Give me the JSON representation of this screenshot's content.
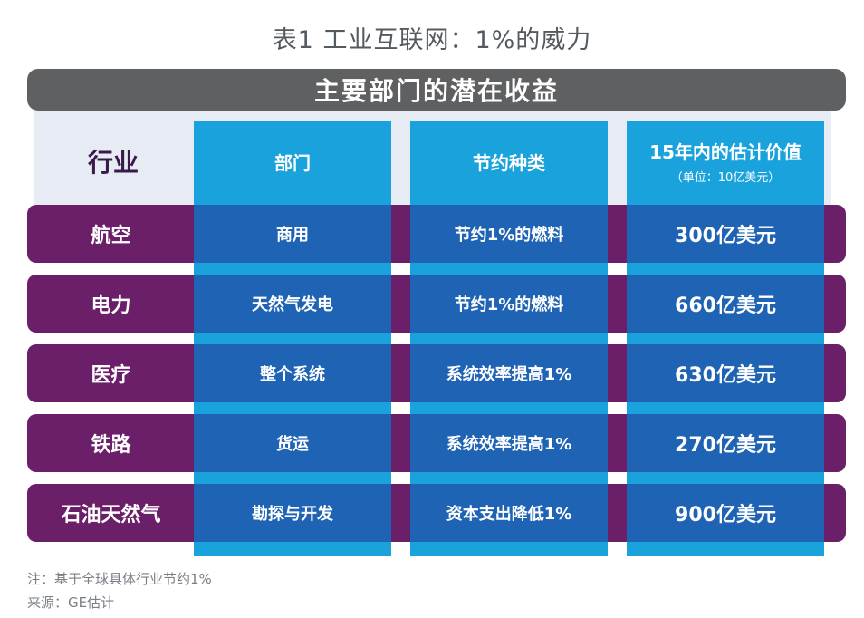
{
  "caption": "表1 工业互联网：1%的威力",
  "banner": "主要部门的潜在收益",
  "headers": {
    "industry": "行业",
    "sector": "部门",
    "saving_type": "节约种类",
    "value": "15年内的估计价值",
    "value_unit": "（单位：10亿美元）"
  },
  "rows": [
    {
      "industry": "航空",
      "sector": "商用",
      "saving": "节约1%的燃料",
      "value": "300亿美元"
    },
    {
      "industry": "电力",
      "sector": "天然气发电",
      "saving": "节约1%的燃料",
      "value": "660亿美元"
    },
    {
      "industry": "医疗",
      "sector": "整个系统",
      "saving": "系统效率提高1%",
      "value": "630亿美元"
    },
    {
      "industry": "铁路",
      "sector": "货运",
      "saving": "系统效率提高1%",
      "value": "270亿美元"
    },
    {
      "industry": "石油天然气",
      "sector": "勘探与开发",
      "saving": "资本支出降低1%",
      "value": "900亿美元"
    }
  ],
  "footer": {
    "note": "注：基于全球具体行业节约1%",
    "source": "来源：GE估计"
  },
  "colors": {
    "banner": "#5e6062",
    "header_column": "#1aa2dc",
    "row_band": "#6a1f68",
    "data_cell": "#1f63b4"
  }
}
